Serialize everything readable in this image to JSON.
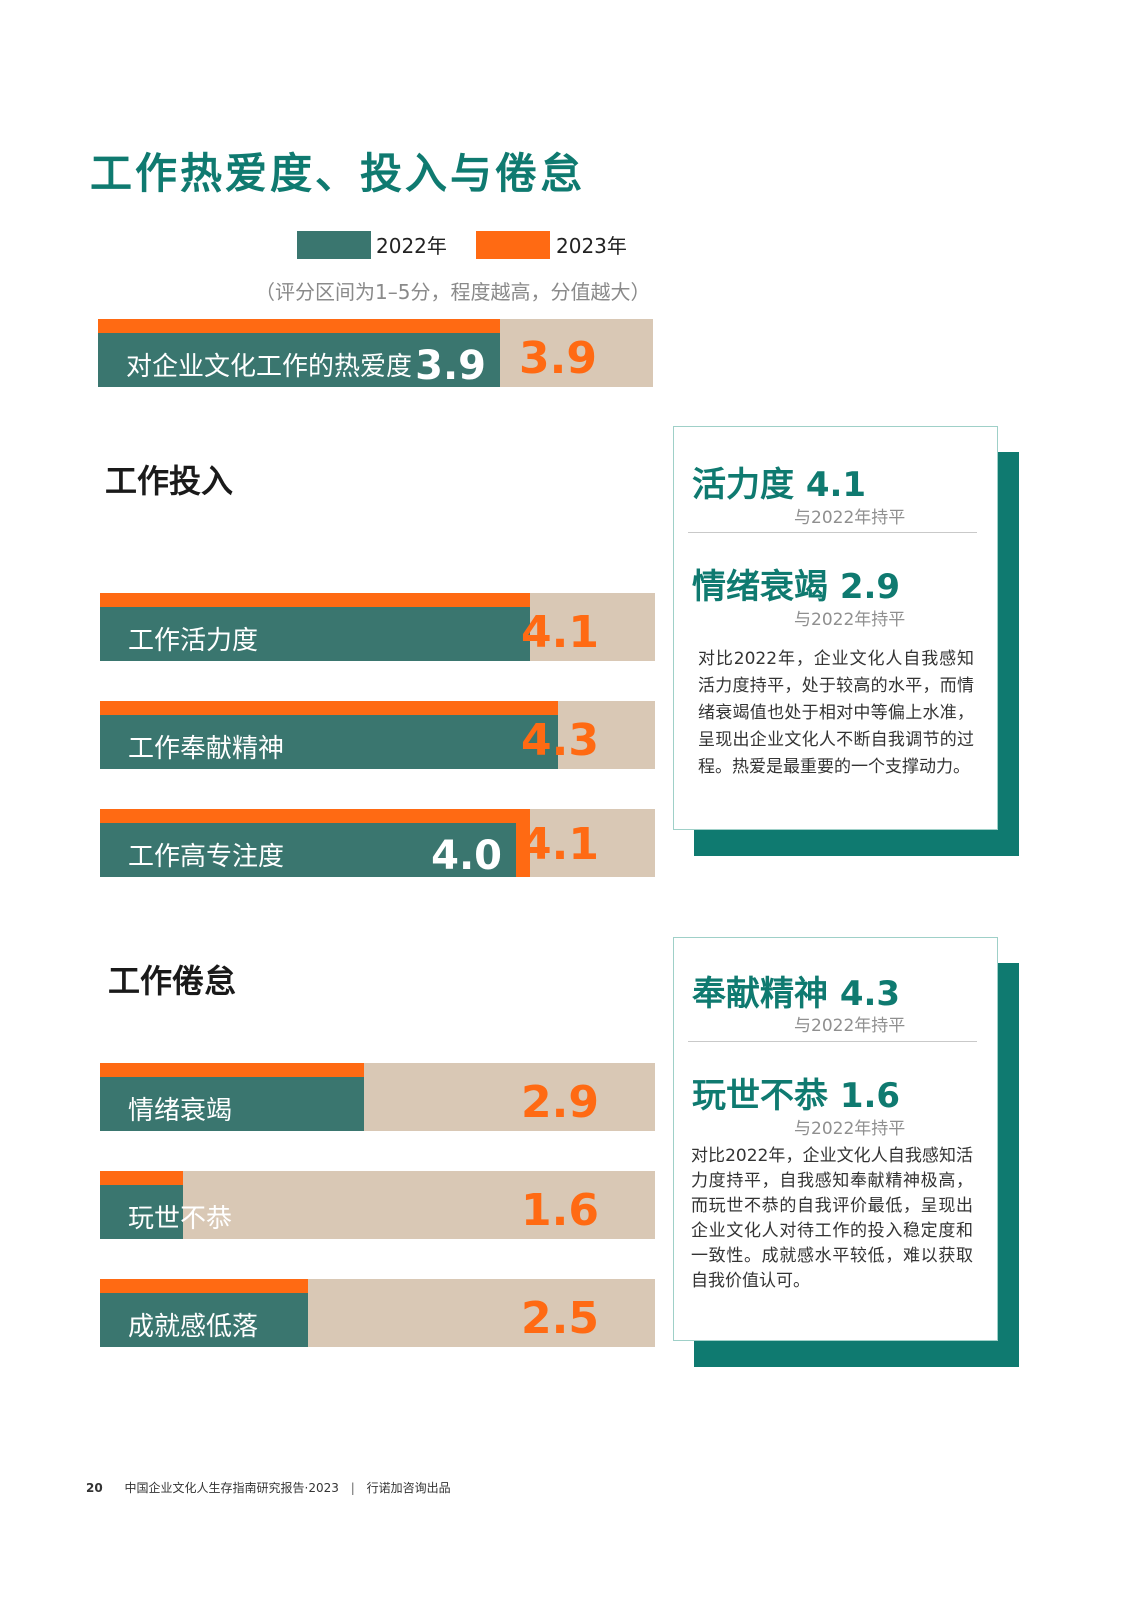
{
  "page": {
    "title": "工作热爱度、投入与倦怠",
    "legend": [
      {
        "label": "2022年",
        "color": "#3a766f"
      },
      {
        "label": "2023年",
        "color": "#ff6a13"
      }
    ],
    "note": "（评分区间为1–5分，程度越高，分值越大）",
    "section_engagement": "工作投入",
    "section_burnout": "工作倦怠"
  },
  "chart_data": [
    {
      "type": "bar",
      "orientation": "horizontal",
      "scale": [
        1,
        5
      ],
      "categories": [
        "对企业文化工作的热爱度"
      ],
      "series": [
        {
          "name": "2022年",
          "values": [
            3.9
          ],
          "labels": [
            "3.9"
          ],
          "color": "#3a766f"
        },
        {
          "name": "2023年",
          "values": [
            3.9
          ],
          "labels": [
            "3.9"
          ],
          "color": "#ff6a13"
        }
      ]
    },
    {
      "type": "bar",
      "orientation": "horizontal",
      "title": "工作投入",
      "scale": [
        1,
        5
      ],
      "categories": [
        "工作活力度",
        "工作奉献精神",
        "工作高专注度"
      ],
      "series": [
        {
          "name": "2022年",
          "values": [
            4.1,
            4.3,
            4.0
          ],
          "labels": [
            "",
            "",
            "4.0"
          ],
          "color": "#3a766f"
        },
        {
          "name": "2023年",
          "values": [
            4.1,
            4.3,
            4.1
          ],
          "labels": [
            "4.1",
            "4.3",
            "4.1"
          ],
          "color": "#ff6a13"
        }
      ]
    },
    {
      "type": "bar",
      "orientation": "horizontal",
      "title": "工作倦怠",
      "scale": [
        1,
        5
      ],
      "categories": [
        "情绪衰竭",
        "玩世不恭",
        "成就感低落"
      ],
      "series": [
        {
          "name": "2022年",
          "values": [
            2.9,
            1.6,
            2.5
          ],
          "labels": [
            "",
            "",
            ""
          ],
          "color": "#3a766f"
        },
        {
          "name": "2023年",
          "values": [
            2.9,
            1.6,
            2.5
          ],
          "labels": [
            "2.9",
            "1.6",
            "2.5"
          ],
          "color": "#ff6a13"
        }
      ]
    }
  ],
  "cards": [
    {
      "h1": "活力度 4.1",
      "sub1": "与2022年持平",
      "h2": "情绪衰竭 2.9",
      "sub2": "与2022年持平",
      "body": "对比2022年，企业文化人自我感知活力度持平，处于较高的水平，而情绪衰竭值也处于相对中等偏上水准，呈现出企业文化人不断自我调节的过程。热爱是最重要的一个支撑动力。"
    },
    {
      "h1": "奉献精神 4.3",
      "sub1": "与2022年持平",
      "h2": "玩世不恭 1.6",
      "sub2": "与2022年持平",
      "body": "对比2022年，企业文化人自我感知活力度持平，自我感知奉献精神极高，而玩世不恭的自我评价最低，呈现出企业文化人对待工作的投入稳定度和一致性。成就感水平较低，难以获取自我价值认可。"
    }
  ],
  "footer": {
    "page_number": "20",
    "report": "中国企业文化人生存指南研究报告·2023",
    "separator": "|",
    "publisher": "行诺加咨询出品"
  }
}
